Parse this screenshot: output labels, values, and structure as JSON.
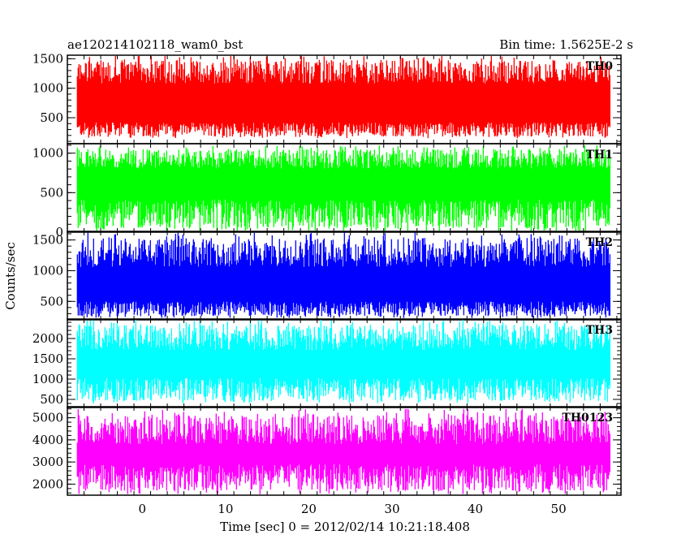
{
  "header": {
    "title": "ae120214102118_wam0_bst",
    "bin_time": "Bin time: 1.5625E-2 s"
  },
  "chart_data": {
    "type": "line",
    "xlabel": "Time [sec] 0 = 2012/02/14 10:21:18.408",
    "ylabel": "Counts/sec",
    "xlim": [
      -9,
      57.5
    ],
    "x_ticks": [
      0,
      10,
      20,
      30,
      40,
      50
    ],
    "x_data_range": [
      -7.8,
      56.2
    ],
    "grid": false,
    "panels": [
      {
        "name": "TH0",
        "color": "#ff0000",
        "ylim": [
          60,
          1560
        ],
        "y_ticks": [
          500,
          1000,
          1500
        ],
        "band_low": 300,
        "band_high": 1200,
        "spike_min": 150,
        "spike_max": 1560
      },
      {
        "name": "TH1",
        "color": "#00ff00",
        "ylim": [
          0,
          1120
        ],
        "y_ticks": [
          0,
          500,
          1000
        ],
        "band_low": 230,
        "band_high": 880,
        "spike_min": 0,
        "spike_max": 1100
      },
      {
        "name": "TH2",
        "color": "#0000ff",
        "ylim": [
          200,
          1640
        ],
        "y_ticks": [
          500,
          1000,
          1500
        ],
        "band_low": 380,
        "band_high": 1200,
        "spike_min": 230,
        "spike_max": 1630
      },
      {
        "name": "TH3",
        "color": "#00ffff",
        "ylim": [
          300,
          2480
        ],
        "y_ticks": [
          500,
          1000,
          1500,
          2000
        ],
        "band_low": 750,
        "band_high": 1900,
        "spike_min": 400,
        "spike_max": 2470
      },
      {
        "name": "TH0123",
        "color": "#ff00ff",
        "ylim": [
          1500,
          5500
        ],
        "y_ticks": [
          2000,
          3000,
          4000,
          5000
        ],
        "band_low": 2300,
        "band_high": 4200,
        "spike_min": 1550,
        "spike_max": 5400
      }
    ]
  }
}
